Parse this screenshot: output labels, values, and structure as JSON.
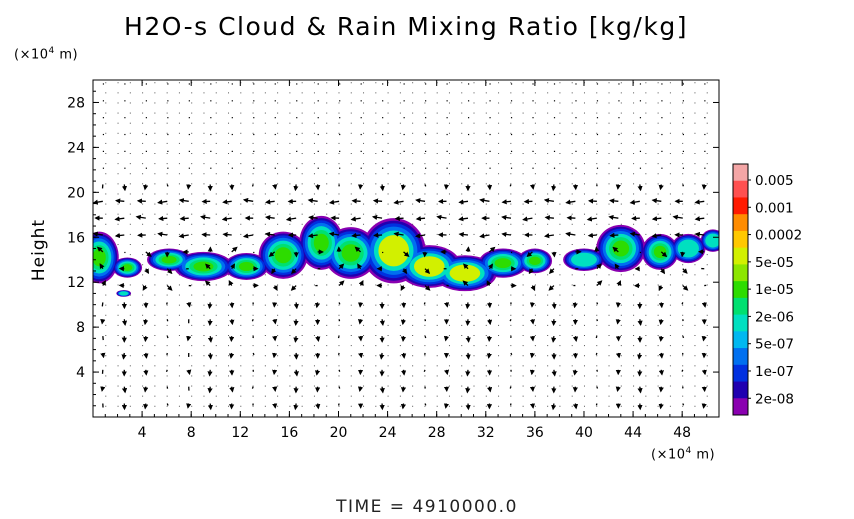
{
  "chart_data": {
    "type": "heatmap",
    "title": "H2O-s Cloud & Rain Mixing Ratio [kg/kg]",
    "ylabel": "Height",
    "y_unit": "(×10⁴ m)",
    "x_unit": "(×10⁴ m)",
    "xlim": [
      0,
      51
    ],
    "ylim": [
      0,
      30
    ],
    "x_ticks": [
      4,
      8,
      12,
      16,
      20,
      24,
      28,
      32,
      36,
      40,
      44,
      48
    ],
    "y_ticks": [
      4,
      8,
      12,
      16,
      20,
      24,
      28
    ],
    "grid": "dotted",
    "legend_position": "right",
    "colorbar_levels": [
      "0.005",
      "0.001",
      "0.0002",
      "5e-05",
      "1e-05",
      "2e-06",
      "5e-07",
      "1e-07",
      "2e-08"
    ],
    "colorbar_colors": [
      "#f4a6a6",
      "#ff5050",
      "#ff1a00",
      "#ff8c00",
      "#ffc800",
      "#d2f000",
      "#8ce600",
      "#2ddc00",
      "#00e070",
      "#00e0c0",
      "#00b8f0",
      "#0070f0",
      "#0030e0",
      "#2000b0",
      "#8a00b0"
    ],
    "cloud_band": {
      "y_min": 11,
      "y_max": 19,
      "x_range": [
        0,
        51
      ]
    },
    "footer": "TIME  =  4910000.0"
  }
}
